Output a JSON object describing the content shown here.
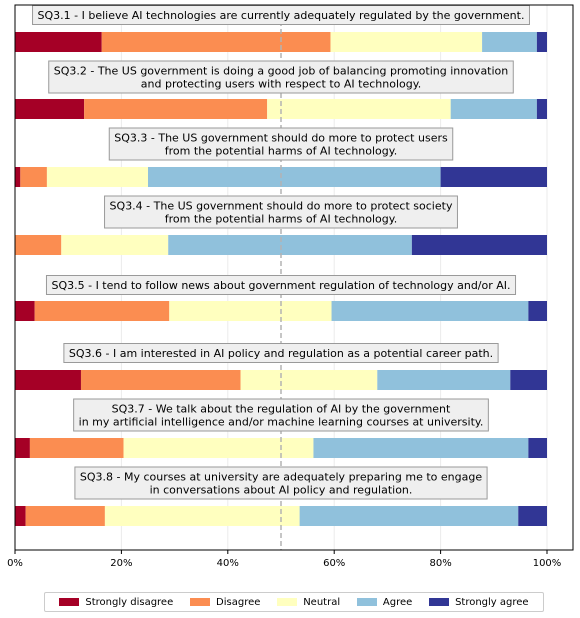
{
  "chart_data": {
    "type": "bar",
    "orientation": "horizontal-stacked",
    "questions": [
      "SQ3.1 - I believe AI technologies are currently adequately regulated by the government.",
      "SQ3.2 - The US government is doing a good job of balancing promoting innovation\nand protecting users with respect to AI technology.",
      "SQ3.3 - The US government should do more to protect users\nfrom the potential harms of AI technology.",
      "SQ3.4 - The US government should do more to protect society\nfrom the potential harms of AI technology.",
      "SQ3.5 - I tend to follow news about government regulation of technology and/or AI.",
      "SQ3.6 - I am interested in AI policy and regulation as a potential career path.",
      "SQ3.7 - We talk about the regulation of AI by the government\nin my artificial intelligence and/or machine learning courses at university.",
      "SQ3.8 - My courses at university are adequately preparing me to engage\nin conversations about AI policy and regulation."
    ],
    "series": [
      {
        "name": "Strongly disagree",
        "color": "#a50026",
        "values": [
          16.3,
          13.0,
          1.0,
          0.0,
          3.7,
          12.4,
          2.8,
          2.0
        ]
      },
      {
        "name": "Disagree",
        "color": "#fb8d51",
        "values": [
          43.0,
          34.4,
          5.0,
          8.7,
          25.3,
          30.0,
          17.6,
          14.9
        ]
      },
      {
        "name": "Neutral",
        "color": "#ffffbf",
        "values": [
          28.5,
          34.5,
          19.0,
          20.1,
          30.5,
          25.7,
          35.7,
          36.6
        ]
      },
      {
        "name": "Agree",
        "color": "#90c1dc",
        "values": [
          10.3,
          16.2,
          55.0,
          45.8,
          37.0,
          25.0,
          40.4,
          41.1
        ]
      },
      {
        "name": "Strongly agree",
        "color": "#313695",
        "values": [
          1.9,
          1.9,
          20.0,
          25.4,
          3.5,
          6.9,
          3.5,
          5.4
        ]
      }
    ],
    "xlim": [
      0,
      105
    ],
    "xticks": [
      "0%",
      "20%",
      "40%",
      "60%",
      "80%",
      "100%"
    ],
    "reference_line": 50,
    "grid": "vertical",
    "legend_placement": "bottom"
  }
}
